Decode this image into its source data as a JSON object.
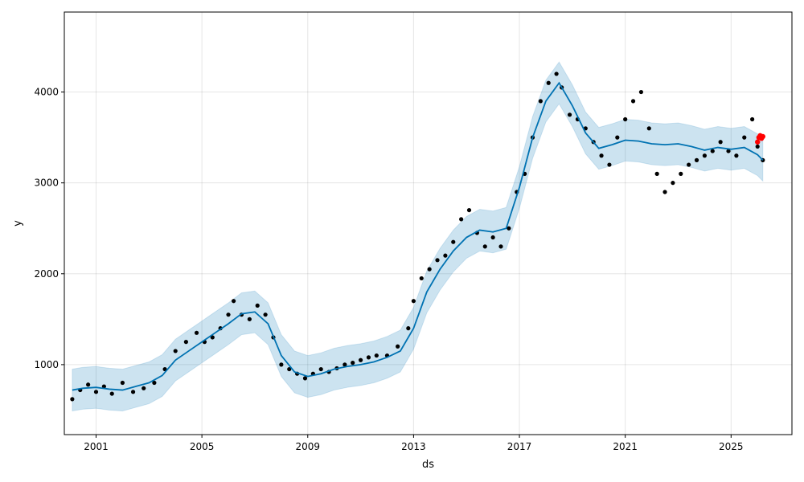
{
  "chart_data": {
    "type": "scatter",
    "title": "",
    "xlabel": "ds",
    "ylabel": "y",
    "xlim": [
      1999.8,
      2027.3
    ],
    "ylim": [
      230,
      4880
    ],
    "grid": true,
    "x_ticks": [
      {
        "value": 2001,
        "label": "2001"
      },
      {
        "value": 2005,
        "label": "2005"
      },
      {
        "value": 2009,
        "label": "2009"
      },
      {
        "value": 2013,
        "label": "2013"
      },
      {
        "value": 2017,
        "label": "2017"
      },
      {
        "value": 2021,
        "label": "2021"
      },
      {
        "value": 2025,
        "label": "2025"
      }
    ],
    "y_ticks": [
      {
        "value": 1000,
        "label": "1000"
      },
      {
        "value": 2000,
        "label": "2000"
      },
      {
        "value": 3000,
        "label": "3000"
      },
      {
        "value": 4000,
        "label": "4000"
      }
    ],
    "colors": {
      "observed": "#000000",
      "forecast": "#0072B2",
      "interval": "#0072B2",
      "recent_actual": "#ff0000"
    },
    "series": [
      {
        "kind": "observed",
        "x": [
          2000.1,
          2000.4,
          2000.7,
          2001.0,
          2001.3,
          2001.6,
          2002.0,
          2002.4,
          2002.8,
          2003.2,
          2003.6,
          2004.0,
          2004.4,
          2004.8,
          2005.1,
          2005.4,
          2005.7,
          2006.0,
          2006.2,
          2006.5,
          2006.8,
          2007.1,
          2007.4,
          2007.7,
          2008.0,
          2008.3,
          2008.6,
          2008.9,
          2009.2,
          2009.5,
          2009.8,
          2010.1,
          2010.4,
          2010.7,
          2011.0,
          2011.3,
          2011.6,
          2012.0,
          2012.4,
          2012.8,
          2013.0,
          2013.3,
          2013.6,
          2013.9,
          2014.2,
          2014.5,
          2014.8,
          2015.1,
          2015.4,
          2015.7,
          2016.0,
          2016.3,
          2016.6,
          2016.9,
          2017.2,
          2017.5,
          2017.8,
          2018.1,
          2018.4,
          2018.6,
          2018.9,
          2019.2,
          2019.5,
          2019.8,
          2020.1,
          2020.4,
          2020.7,
          2021.0,
          2021.3,
          2021.6,
          2021.9,
          2022.2,
          2022.5,
          2022.8,
          2023.1,
          2023.4,
          2023.7,
          2024.0,
          2024.3,
          2024.6,
          2024.9,
          2025.2,
          2025.5,
          2025.8,
          2026.0,
          2026.2
        ],
        "y": [
          620,
          720,
          780,
          700,
          760,
          680,
          800,
          700,
          740,
          800,
          950,
          1150,
          1250,
          1350,
          1250,
          1300,
          1400,
          1550,
          1700,
          1550,
          1500,
          1650,
          1550,
          1300,
          1000,
          950,
          900,
          850,
          900,
          950,
          920,
          960,
          1000,
          1020,
          1050,
          1080,
          1100,
          1100,
          1200,
          1400,
          1700,
          1950,
          2050,
          2150,
          2200,
          2350,
          2600,
          2700,
          2450,
          2300,
          2400,
          2300,
          2500,
          2900,
          3100,
          3500,
          3900,
          4100,
          4200,
          4050,
          3750,
          3700,
          3600,
          3450,
          3300,
          3200,
          3500,
          3700,
          3900,
          4000,
          3600,
          3100,
          2900,
          3000,
          3100,
          3200,
          3250,
          3300,
          3350,
          3450,
          3350,
          3300,
          3500,
          3700,
          3400,
          3250
        ]
      },
      {
        "kind": "forecast",
        "x": [
          2000.1,
          2000.5,
          2001.0,
          2001.5,
          2002.0,
          2002.5,
          2003.0,
          2003.5,
          2004.0,
          2004.5,
          2005.0,
          2005.5,
          2006.0,
          2006.5,
          2007.0,
          2007.5,
          2008.0,
          2008.5,
          2009.0,
          2009.5,
          2010.0,
          2010.5,
          2011.0,
          2011.5,
          2012.0,
          2012.5,
          2013.0,
          2013.5,
          2014.0,
          2014.5,
          2015.0,
          2015.5,
          2016.0,
          2016.5,
          2017.0,
          2017.5,
          2018.0,
          2018.5,
          2019.0,
          2019.5,
          2020.0,
          2020.5,
          2021.0,
          2021.5,
          2022.0,
          2022.5,
          2023.0,
          2023.5,
          2024.0,
          2024.5,
          2025.0,
          2025.5,
          2026.0,
          2026.2
        ],
        "y": [
          720,
          740,
          750,
          730,
          720,
          760,
          800,
          880,
          1050,
          1150,
          1250,
          1350,
          1450,
          1560,
          1580,
          1450,
          1100,
          920,
          870,
          900,
          950,
          980,
          1000,
          1030,
          1080,
          1150,
          1400,
          1800,
          2050,
          2250,
          2400,
          2480,
          2460,
          2500,
          2950,
          3500,
          3900,
          4100,
          3850,
          3550,
          3380,
          3420,
          3470,
          3460,
          3430,
          3420,
          3430,
          3400,
          3360,
          3390,
          3370,
          3390,
          3310,
          3250
        ]
      },
      {
        "kind": "recent_actual",
        "x": [
          2026.0,
          2026.05,
          2026.1,
          2026.15,
          2026.2
        ],
        "y": [
          3450,
          3500,
          3520,
          3490,
          3510
        ]
      }
    ]
  }
}
